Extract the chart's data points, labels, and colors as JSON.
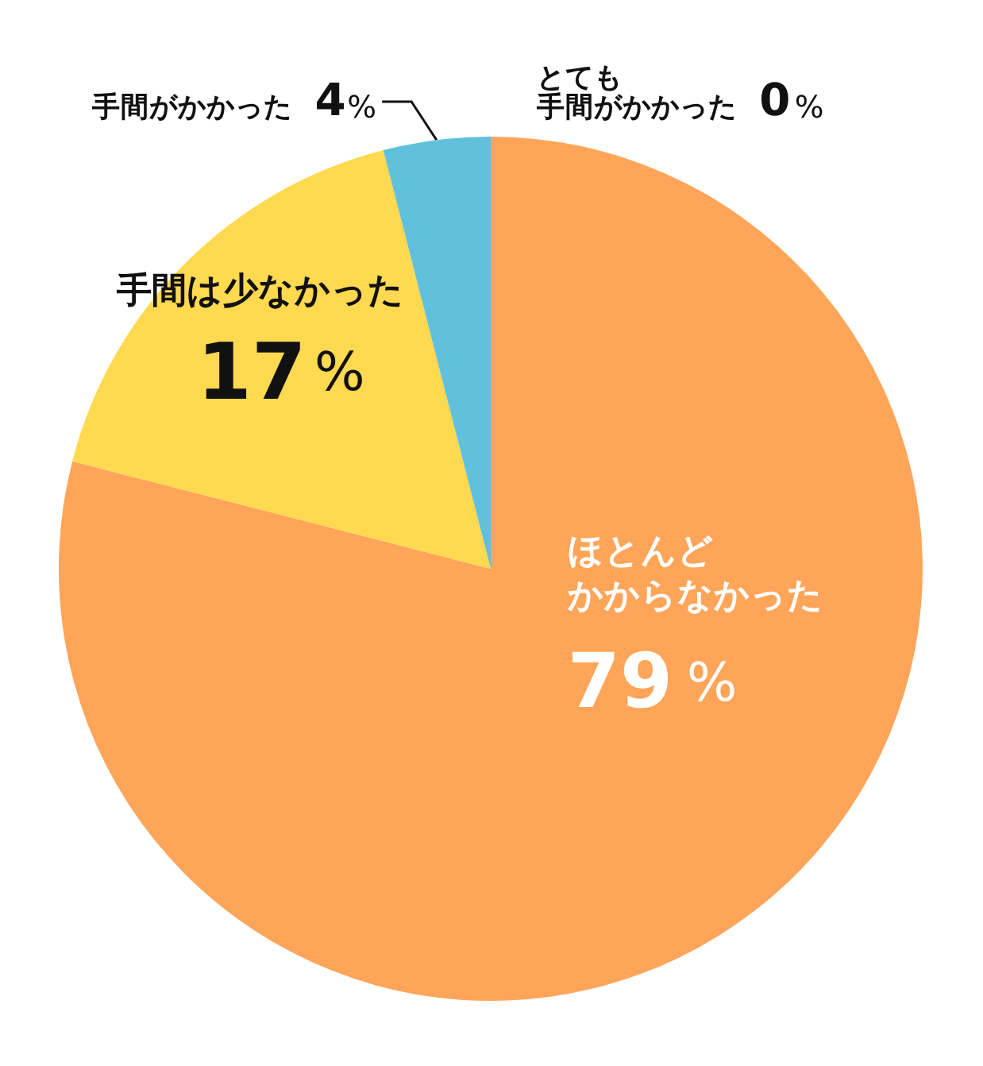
{
  "chart_data": {
    "type": "pie",
    "categories": [
      "ほとんどかからなかった",
      "手間は少なかった",
      "手間がかかった",
      "とても手間がかかった"
    ],
    "values": [
      79,
      17,
      4,
      0
    ],
    "colors": [
      "#ffa55a",
      "#ffd94f",
      "#61c1dc",
      null
    ],
    "value_labels": [
      "79%",
      "17%",
      "4%",
      "0%"
    ]
  }
}
